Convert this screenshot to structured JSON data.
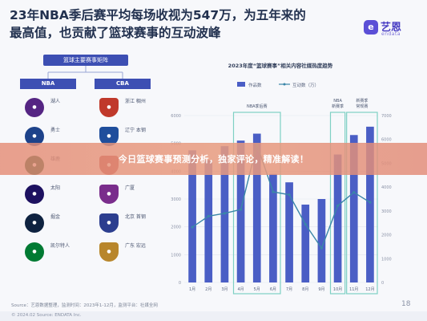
{
  "headline": {
    "line1": "23年NBA季后赛平均每场收视为547万，为五年来的",
    "line2": "最高值，也贡献了篮球赛事的互动波峰"
  },
  "logo": {
    "mark": "e",
    "name": "艺恩",
    "sub": "endata"
  },
  "matrix": {
    "title": "篮球主要赛事矩阵",
    "leagues": [
      {
        "tag": "NBA",
        "teams": [
          {
            "name": "湖人",
            "icon": "lakers-logo",
            "color": "#552583"
          },
          {
            "name": "勇士",
            "icon": "warriors-logo",
            "color": "#1d428a"
          },
          {
            "name": "雄鹿",
            "icon": "bucks-logo",
            "color": "#00471b"
          },
          {
            "name": "太阳",
            "icon": "suns-logo",
            "color": "#1d1160"
          },
          {
            "name": "掘金",
            "icon": "nuggets-logo",
            "color": "#0e2240"
          },
          {
            "name": "凯尔特人",
            "icon": "celtics-logo",
            "color": "#007a33"
          }
        ]
      },
      {
        "tag": "CBA",
        "teams": [
          {
            "name": "浙江 稠州",
            "icon": "zhejiang-logo",
            "color": "#c0392b"
          },
          {
            "name": "辽宁 本钢",
            "icon": "liaoning-logo",
            "color": "#1f4e9c"
          },
          {
            "name": "上海 久事",
            "icon": "shanghai-logo",
            "color": "#b0303a"
          },
          {
            "name": "广厦",
            "icon": "guangsha-logo",
            "color": "#7a2d8c"
          },
          {
            "name": "北京 首钢",
            "icon": "beijing-logo",
            "color": "#2c3e8f"
          },
          {
            "name": "广东 宏远",
            "icon": "guangdong-logo",
            "color": "#b8862b"
          }
        ]
      }
    ]
  },
  "chart_data": {
    "type": "bar",
    "title": "2023年度“篮球赛事”相关内容社媒热度趋势",
    "categories": [
      "1月",
      "2月",
      "3月",
      "4月",
      "5月",
      "6月",
      "7月",
      "8月",
      "9月",
      "10月",
      "11月",
      "12月"
    ],
    "series": [
      {
        "name": "作品数",
        "type": "bar",
        "axis": "left",
        "values": [
          4750,
          4400,
          4900,
          5100,
          5350,
          3900,
          3600,
          2800,
          3000,
          4600,
          5300,
          5600
        ]
      },
      {
        "name": "互动数（万）",
        "type": "line",
        "axis": "right",
        "values": [
          2320,
          2780,
          2900,
          3060,
          5780,
          3800,
          3680,
          2440,
          1440,
          3220,
          3780,
          3360
        ]
      }
    ],
    "yaxis_left": {
      "ticks": [
        0,
        1000,
        2000,
        3000,
        4000,
        5000,
        6000
      ],
      "ylim": [
        0,
        6000
      ]
    },
    "yaxis_right": {
      "ticks": [
        0,
        1000,
        2000,
        3000,
        4000,
        5000,
        6000,
        7000
      ],
      "ylim": [
        0,
        7000
      ]
    },
    "highlights": [
      {
        "label": "NBA季后赛",
        "from": "4月",
        "to": "6月"
      },
      {
        "label": "NBA 新赛季",
        "from": "10月",
        "to": "10月"
      },
      {
        "label": "新赛季 常规赛",
        "from": "11月",
        "to": "12月"
      }
    ],
    "legend_position": "top"
  },
  "banner": {
    "text": "今日篮球赛事预测分析，独家评论，精准解读！"
  },
  "source": "Source：艺恩数据整理，监测时间：2023年1-12月，监测平台：社媒全网",
  "footer": "© 2024.02  Source: ENDATA Inc.",
  "page_number": "18",
  "colors": {
    "bar": "#4a5ec5",
    "line": "#3a86a8",
    "highlight": "#7fd0c4",
    "tag": "#3d4fb3"
  }
}
